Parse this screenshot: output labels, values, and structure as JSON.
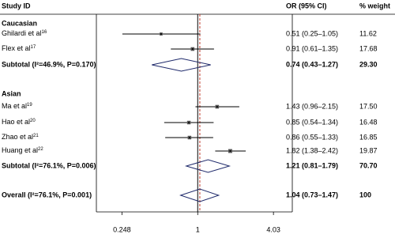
{
  "chart_data": {
    "type": "forest",
    "headers": {
      "study": "Study ID",
      "estimate": "OR (95% CI)",
      "weight": "% weight"
    },
    "xlim": [
      0.155,
      5.7
    ],
    "log_scale": true,
    "xticks": [
      0.248,
      1,
      4.03
    ],
    "null_value": 1,
    "groups": [
      {
        "name": "Caucasian",
        "studies": [
          {
            "name": "Ghilardi et al",
            "ref": "16",
            "value": 0.51,
            "lower": 0.25,
            "upper": 1.05,
            "value_label": "0.51 (0.25–1.05)",
            "weight": 11.62
          },
          {
            "name": "Flex et al",
            "ref": "17",
            "value": 0.91,
            "lower": 0.61,
            "upper": 1.35,
            "value_label": "0.91 (0.61–1.35)",
            "weight": 17.68
          }
        ],
        "subtotal": {
          "label": "Subtotal (I²=46.9%, P=0.170)",
          "value": 0.74,
          "lower": 0.43,
          "upper": 1.27,
          "value_label": "0.74 (0.43–1.27)",
          "weight": {
            "value": 29.3,
            "label": "29.30"
          }
        }
      },
      {
        "name": "Asian",
        "studies": [
          {
            "name": "Ma et al",
            "ref": "19",
            "value": 1.43,
            "lower": 0.96,
            "upper": 2.15,
            "value_label": "1.43 (0.96–2.15)",
            "weight": {
              "value": 17.5,
              "label": "17.50"
            }
          },
          {
            "name": "Hao et al",
            "ref": "20",
            "value": 0.85,
            "lower": 0.54,
            "upper": 1.34,
            "value_label": "0.85 (0.54–1.34)",
            "weight": 16.48
          },
          {
            "name": "Zhao et al",
            "ref": "21",
            "value": 0.86,
            "lower": 0.55,
            "upper": 1.33,
            "value_label": "0.86 (0.55–1.33)",
            "weight": 16.85
          },
          {
            "name": "Huang et al",
            "ref": "22",
            "value": 1.82,
            "lower": 1.38,
            "upper": 2.42,
            "value_label": "1.82 (1.38–2.42)",
            "weight": 19.87
          }
        ],
        "subtotal": {
          "label": "Subtotal (I²=76.1%, P=0.006)",
          "value": 1.21,
          "lower": 0.81,
          "upper": 1.79,
          "value_label": "1.21 (0.81–1.79)",
          "weight": {
            "value": 70.7,
            "label": "70.70"
          }
        }
      }
    ],
    "overall": {
      "label": "Overall (I²=76.1%, P=0.001)",
      "value": 1.04,
      "lower": 0.73,
      "upper": 1.47,
      "value_label": "1.04 (0.73–1.47)",
      "weight": 100
    },
    "box_color": "#555555",
    "diamond_color": "#1f2a6b",
    "overall_line_color": "#c0392b"
  }
}
